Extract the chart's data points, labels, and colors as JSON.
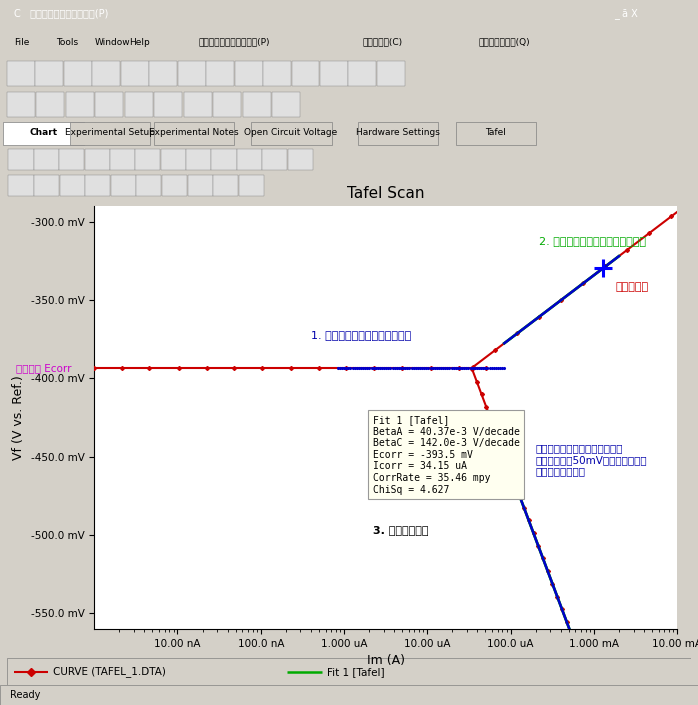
{
  "title": "Tafel Scan",
  "xlabel": "Im (A)",
  "ylabel": "Vf (V vs. Ref.)",
  "bg_color": "#d4d0c8",
  "plot_bg_color": "#ffffff",
  "ylim": [
    -560,
    -290
  ],
  "yticks": [
    -300,
    -350,
    -400,
    -450,
    -500,
    -550
  ],
  "ytick_labels": [
    "-300.0 mV",
    "-350.0 mV",
    "-400.0 mV",
    "-450.0 mV",
    "-500.0 mV",
    "-550.0 mV"
  ],
  "xtick_labels": [
    "10.00 nA",
    "100.0 nA",
    "1.000 uA",
    "10.00 uA",
    "100.0 uA",
    "1.000 mA",
    "10.00 mA"
  ],
  "xtick_positions": [
    1e-08,
    1e-07,
    1e-06,
    1e-05,
    0.0001,
    0.001,
    0.01
  ],
  "ecorr_V": -0.3935,
  "icorr_A": 3.415e-05,
  "betaA": 0.04037,
  "betaC": 0.142,
  "fit_start_I": 8.415e-05,
  "fit_end_anodic_I": 0.002,
  "fit_end_cathodic_I": 0.0015,
  "annotation_label1": "1. フィッティングエリアの選択",
  "annotation_label2": "2. 測定データへのフィッティング",
  "annotation_label3": "3. 計算結果表示",
  "annotation_ecorr": "腐食電位 Ecorr",
  "annotation_sokutei": "測定データ",
  "annotation_fitting_note": "フィッティングエリアの選択は\n腐食電位より50mV以上離れた位置\nより開始します。",
  "infobox_text": "Fit 1 [Tafel]\nBetaA = 40.37e-3 V/decade\nBetaC = 142.0e-3 V/decade\nEcorr = -393.5 mV\nIcorr = 34.15 uA\nCorrRate = 35.46 mpy\nChiSq = 4.627",
  "curve_color": "#cc0000",
  "fit_color": "#00aa00",
  "fit_region_color": "#0000cc",
  "marker_color": "#0000ff",
  "ecorr_color": "#cc00cc",
  "label1_color": "#0000aa",
  "label2_color": "#00aa00",
  "legend_curve": "CURVE (TAFEL_1.DTA)",
  "legend_fit": "Fit 1 [Tafel]",
  "tabs": [
    "Chart",
    "Experimental Setup",
    "Experimental Notes",
    "Open Circuit Voltage",
    "Hardware Settings",
    "Tafel"
  ]
}
